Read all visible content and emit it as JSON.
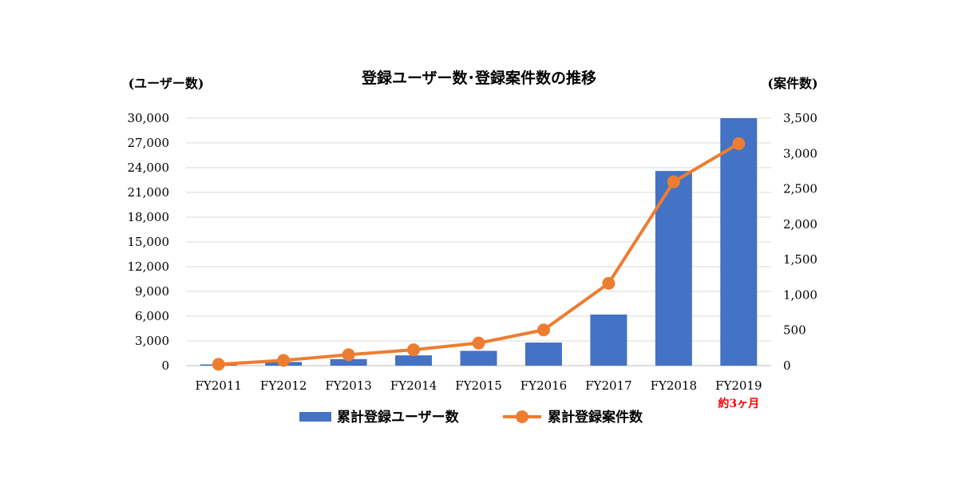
{
  "chart_data": {
    "type": "bar+line",
    "title": "登録ユーザー数･登録案件数の推移",
    "categories": [
      "FY2011",
      "FY2012",
      "FY2013",
      "FY2014",
      "FY2015",
      "FY2016",
      "FY2017",
      "FY2018",
      "FY2019"
    ],
    "category_note": {
      "category": "FY2019",
      "text": "約3ヶ月",
      "color": "#ff0000"
    },
    "y_left": {
      "label": "(ユーザー数)",
      "min": 0,
      "max": 30000,
      "step": 3000,
      "tick_labels": [
        "0",
        "3,000",
        "6,000",
        "9,000",
        "12,000",
        "15,000",
        "18,000",
        "21,000",
        "24,000",
        "27,000",
        "30,000"
      ]
    },
    "y_right": {
      "label": "(案件数)",
      "min": 0,
      "max": 3500,
      "step": 500,
      "tick_labels": [
        "0",
        "500",
        "1,000",
        "1,500",
        "2,000",
        "2,500",
        "3,000",
        "3,500"
      ]
    },
    "grid": true,
    "legend_position": "bottom",
    "series": [
      {
        "name": "累計登録ユーザー数",
        "kind": "bar",
        "axis": "left",
        "color": "#4472c4",
        "values": [
          150,
          450,
          800,
          1250,
          1800,
          2800,
          6200,
          23600,
          30000
        ]
      },
      {
        "name": "累計登録案件数",
        "kind": "line",
        "axis": "right",
        "color": "#ed7d31",
        "values": [
          20,
          75,
          155,
          225,
          320,
          505,
          1165,
          2600,
          3140
        ]
      }
    ]
  }
}
